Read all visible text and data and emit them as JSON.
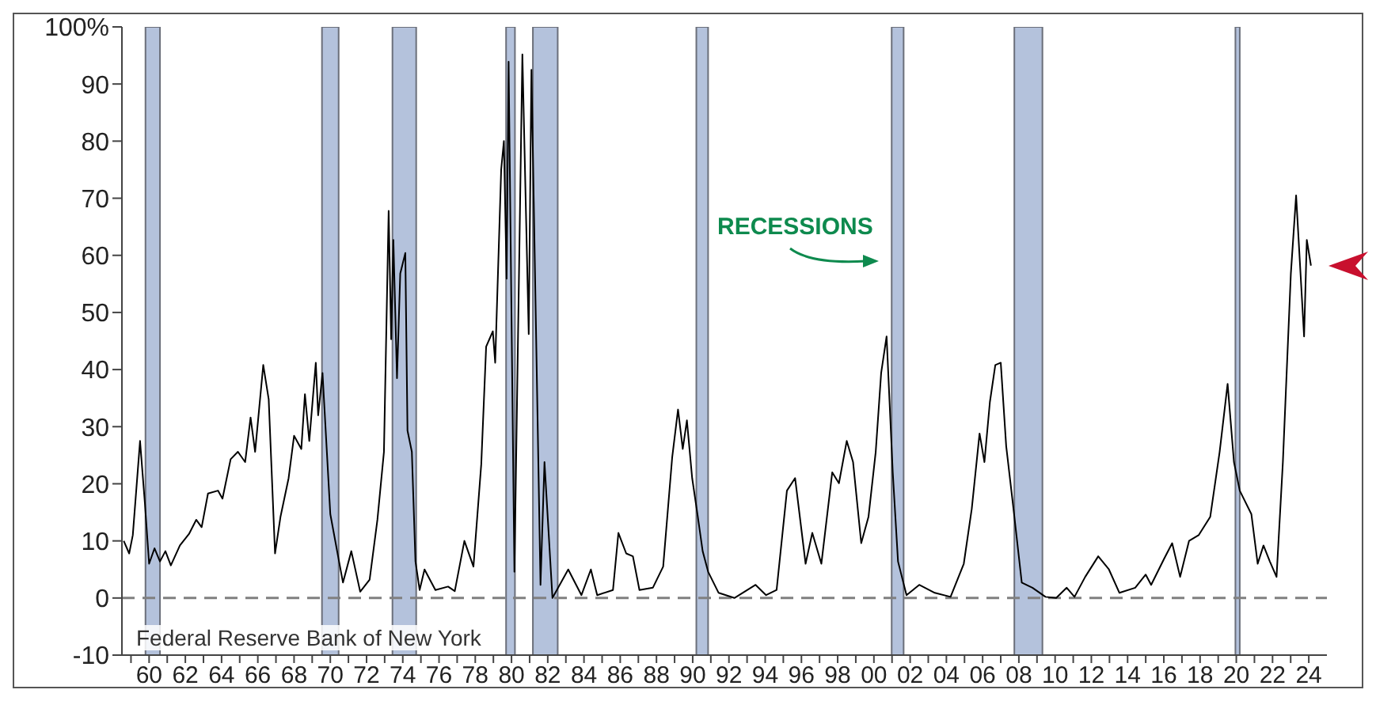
{
  "chart_data": {
    "type": "line",
    "x": [
      1958.6,
      1958.9,
      1959.1,
      1959.5,
      1959.77,
      1960,
      1960.3,
      1960.6,
      1960.9,
      1961.2,
      1961.7,
      1962.2,
      1962.6,
      1962.9,
      1963.25,
      1963.8,
      1964.05,
      1964.5,
      1964.9,
      1965.3,
      1965.6,
      1965.85,
      1966.3,
      1966.6,
      1966.95,
      1967.25,
      1967.7,
      1968,
      1968.4,
      1968.6,
      1968.84,
      1969.2,
      1969.33,
      1969.57,
      1970,
      1970.43,
      1970.7,
      1971.16,
      1971.65,
      1972.17,
      1972.6,
      1972.96,
      1973.22,
      1973.36,
      1973.48,
      1973.68,
      1973.86,
      1974.14,
      1974.26,
      1974.5,
      1974.7,
      1974.93,
      1975.2,
      1975.8,
      1976.5,
      1976.87,
      1977.4,
      1977.9,
      1978.33,
      1978.6,
      1978.97,
      1979.1,
      1979.43,
      1979.58,
      1979.73,
      1979.84,
      1980.16,
      1980.6,
      1980.95,
      1981.1,
      1981.6,
      1981.82,
      1982.26,
      1983.13,
      1983.86,
      1984.38,
      1984.73,
      1985.6,
      1985.9,
      1986.33,
      1986.7,
      1987.06,
      1987.8,
      1988.37,
      1988.87,
      1989.19,
      1989.45,
      1989.68,
      1989.97,
      1990.26,
      1990.55,
      1990.85,
      1991.43,
      1992.3,
      1993.47,
      1994.05,
      1994.63,
      1995.2,
      1995.65,
      1996.23,
      1996.6,
      1997.1,
      1997.7,
      1998.07,
      1998.5,
      1998.85,
      1999.3,
      1999.7,
      2000.1,
      2000.4,
      2000.7,
      2001.04,
      2001.33,
      2001.8,
      2002.5,
      2003.36,
      2004.23,
      2004.96,
      2005.4,
      2005.83,
      2006.1,
      2006.4,
      2006.7,
      2007,
      2007.3,
      2007.67,
      2008.16,
      2008.75,
      2009.47,
      2010.06,
      2010.64,
      2011.07,
      2011.66,
      2012.38,
      2012.97,
      2013.55,
      2014.42,
      2015,
      2015.3,
      2016.02,
      2016.46,
      2016.9,
      2017.39,
      2017.92,
      2018.56,
      2019.08,
      2019.52,
      2019.87,
      2020.19,
      2020.83,
      2021.18,
      2021.5,
      2021.85,
      2022.22,
      2022.57,
      2023.01,
      2023.3,
      2023.74,
      2023.89,
      2024.12
    ],
    "series": [
      {
        "color": "#000000",
        "values": [
          10,
          7.8,
          11,
          27.5,
          16.5,
          6,
          8.7,
          6.4,
          8.2,
          5.7,
          9.2,
          11.2,
          13.7,
          12.4,
          18.3,
          18.8,
          17.4,
          24.3,
          25.6,
          23.8,
          31.6,
          25.6,
          40.8,
          34.8,
          7.8,
          14.2,
          21,
          28.4,
          26.1,
          35.7,
          27.5,
          41.2,
          32,
          39.4,
          14.7,
          7.3,
          2.7,
          8.2,
          1.1,
          3.2,
          13.7,
          25.6,
          67.8,
          45.3,
          62.7,
          38.5,
          56.8,
          60.4,
          29.3,
          25.6,
          6.4,
          1.4,
          5,
          1.4,
          2,
          1.2,
          10,
          5.5,
          23.4,
          44,
          46.7,
          41.2,
          75,
          80,
          55.9,
          93.9,
          4.6,
          95.2,
          46.2,
          92.5,
          2.3,
          23.8,
          0,
          5,
          0.5,
          5,
          0.5,
          1.4,
          11.4,
          7.8,
          7.3,
          1.4,
          1.8,
          5.5,
          24.7,
          33,
          26.1,
          31.1,
          21,
          14.7,
          8.2,
          4.6,
          0.9,
          0,
          2.3,
          0.5,
          1.4,
          18.8,
          21,
          6,
          11.4,
          6,
          22,
          20.1,
          27.5,
          23.8,
          9.6,
          14.2,
          25.6,
          39.4,
          45.8,
          22,
          6.4,
          0.5,
          2.3,
          0.9,
          0.2,
          6,
          15.6,
          28.8,
          23.8,
          34.3,
          40.8,
          41.2,
          26.6,
          16.5,
          2.7,
          1.8,
          0.2,
          0,
          1.8,
          0.2,
          3.7,
          7.3,
          5,
          0.9,
          1.8,
          4.1,
          2.3,
          6.9,
          9.6,
          3.7,
          10,
          11,
          14.2,
          25.6,
          37.5,
          23.8,
          18.8,
          14.7,
          6,
          9.2,
          6.4,
          3.7,
          23.8,
          56.8,
          70.5,
          45.8,
          62.7,
          58.2
        ]
      }
    ],
    "xlim": [
      1958.5,
      2025
    ],
    "xticks": [
      {
        "value": 1959,
        "label": null
      },
      {
        "value": 1960,
        "label": "60"
      },
      {
        "value": 1961,
        "label": null
      },
      {
        "value": 1962,
        "label": "62"
      },
      {
        "value": 1963,
        "label": null
      },
      {
        "value": 1964,
        "label": "64"
      },
      {
        "value": 1965,
        "label": null
      },
      {
        "value": 1966,
        "label": "66"
      },
      {
        "value": 1967,
        "label": null
      },
      {
        "value": 1968,
        "label": "68"
      },
      {
        "value": 1969,
        "label": null
      },
      {
        "value": 1970,
        "label": "70"
      },
      {
        "value": 1971,
        "label": null
      },
      {
        "value": 1972,
        "label": "72"
      },
      {
        "value": 1973,
        "label": null
      },
      {
        "value": 1974,
        "label": "74"
      },
      {
        "value": 1975,
        "label": null
      },
      {
        "value": 1976,
        "label": "76"
      },
      {
        "value": 1977,
        "label": null
      },
      {
        "value": 1978,
        "label": "78"
      },
      {
        "value": 1979,
        "label": null
      },
      {
        "value": 1980,
        "label": "80"
      },
      {
        "value": 1981,
        "label": null
      },
      {
        "value": 1982,
        "label": "82"
      },
      {
        "value": 1983,
        "label": null
      },
      {
        "value": 1984,
        "label": "84"
      },
      {
        "value": 1985,
        "label": null
      },
      {
        "value": 1986,
        "label": "86"
      },
      {
        "value": 1987,
        "label": null
      },
      {
        "value": 1988,
        "label": "88"
      },
      {
        "value": 1989,
        "label": null
      },
      {
        "value": 1990,
        "label": "90"
      },
      {
        "value": 1991,
        "label": null
      },
      {
        "value": 1992,
        "label": "92"
      },
      {
        "value": 1993,
        "label": null
      },
      {
        "value": 1994,
        "label": "94"
      },
      {
        "value": 1995,
        "label": null
      },
      {
        "value": 1996,
        "label": "96"
      },
      {
        "value": 1997,
        "label": null
      },
      {
        "value": 1998,
        "label": "98"
      },
      {
        "value": 1999,
        "label": null
      },
      {
        "value": 2000,
        "label": "00"
      },
      {
        "value": 2001,
        "label": null
      },
      {
        "value": 2002,
        "label": "02"
      },
      {
        "value": 2003,
        "label": null
      },
      {
        "value": 2004,
        "label": "04"
      },
      {
        "value": 2005,
        "label": null
      },
      {
        "value": 2006,
        "label": "06"
      },
      {
        "value": 2007,
        "label": null
      },
      {
        "value": 2008,
        "label": "08"
      },
      {
        "value": 2009,
        "label": null
      },
      {
        "value": 2010,
        "label": "10"
      },
      {
        "value": 2011,
        "label": null
      },
      {
        "value": 2012,
        "label": "12"
      },
      {
        "value": 2013,
        "label": null
      },
      {
        "value": 2014,
        "label": "14"
      },
      {
        "value": 2015,
        "label": null
      },
      {
        "value": 2016,
        "label": "16"
      },
      {
        "value": 2017,
        "label": null
      },
      {
        "value": 2018,
        "label": "18"
      },
      {
        "value": 2019,
        "label": null
      },
      {
        "value": 2020,
        "label": "20"
      },
      {
        "value": 2021,
        "label": null
      },
      {
        "value": 2022,
        "label": "22"
      },
      {
        "value": 2023,
        "label": null
      },
      {
        "value": 2024,
        "label": "24"
      }
    ],
    "ylim": [
      -10,
      100
    ],
    "yticks": [
      -10,
      0,
      10,
      20,
      30,
      40,
      50,
      60,
      70,
      80,
      90,
      {
        "value": 100,
        "label": "100%"
      }
    ],
    "grid": false,
    "legend": false,
    "marker": "none",
    "line_style": "solid",
    "ref_lines": [
      {
        "axis": "y",
        "value": 0,
        "color": "#808080",
        "line_style": "dashed"
      }
    ],
    "bands": [
      {
        "axis": "x",
        "from": 1959.8,
        "to": 1960.6,
        "color": "#b4c2dc"
      },
      {
        "axis": "x",
        "from": 1969.54,
        "to": 1970.46,
        "color": "#b4c2dc"
      },
      {
        "axis": "x",
        "from": 1973.43,
        "to": 1974.74,
        "color": "#b4c2dc"
      },
      {
        "axis": "x",
        "from": 1979.7,
        "to": 1980.19,
        "color": "#b4c2dc"
      },
      {
        "axis": "x",
        "from": 1981.18,
        "to": 1982.55,
        "color": "#b4c2dc"
      },
      {
        "axis": "x",
        "from": 1990.2,
        "to": 1990.85,
        "color": "#b4c2dc"
      },
      {
        "axis": "x",
        "from": 2000.98,
        "to": 2001.64,
        "color": "#b4c2dc"
      },
      {
        "axis": "x",
        "from": 2007.75,
        "to": 2009.3,
        "color": "#b4c2dc"
      },
      {
        "axis": "x",
        "from": 2019.95,
        "to": 2020.19,
        "color": "#b4c2dc"
      }
    ],
    "annotations": [
      "RECESSIONS",
      "Federal Reserve Bank of New York"
    ]
  }
}
